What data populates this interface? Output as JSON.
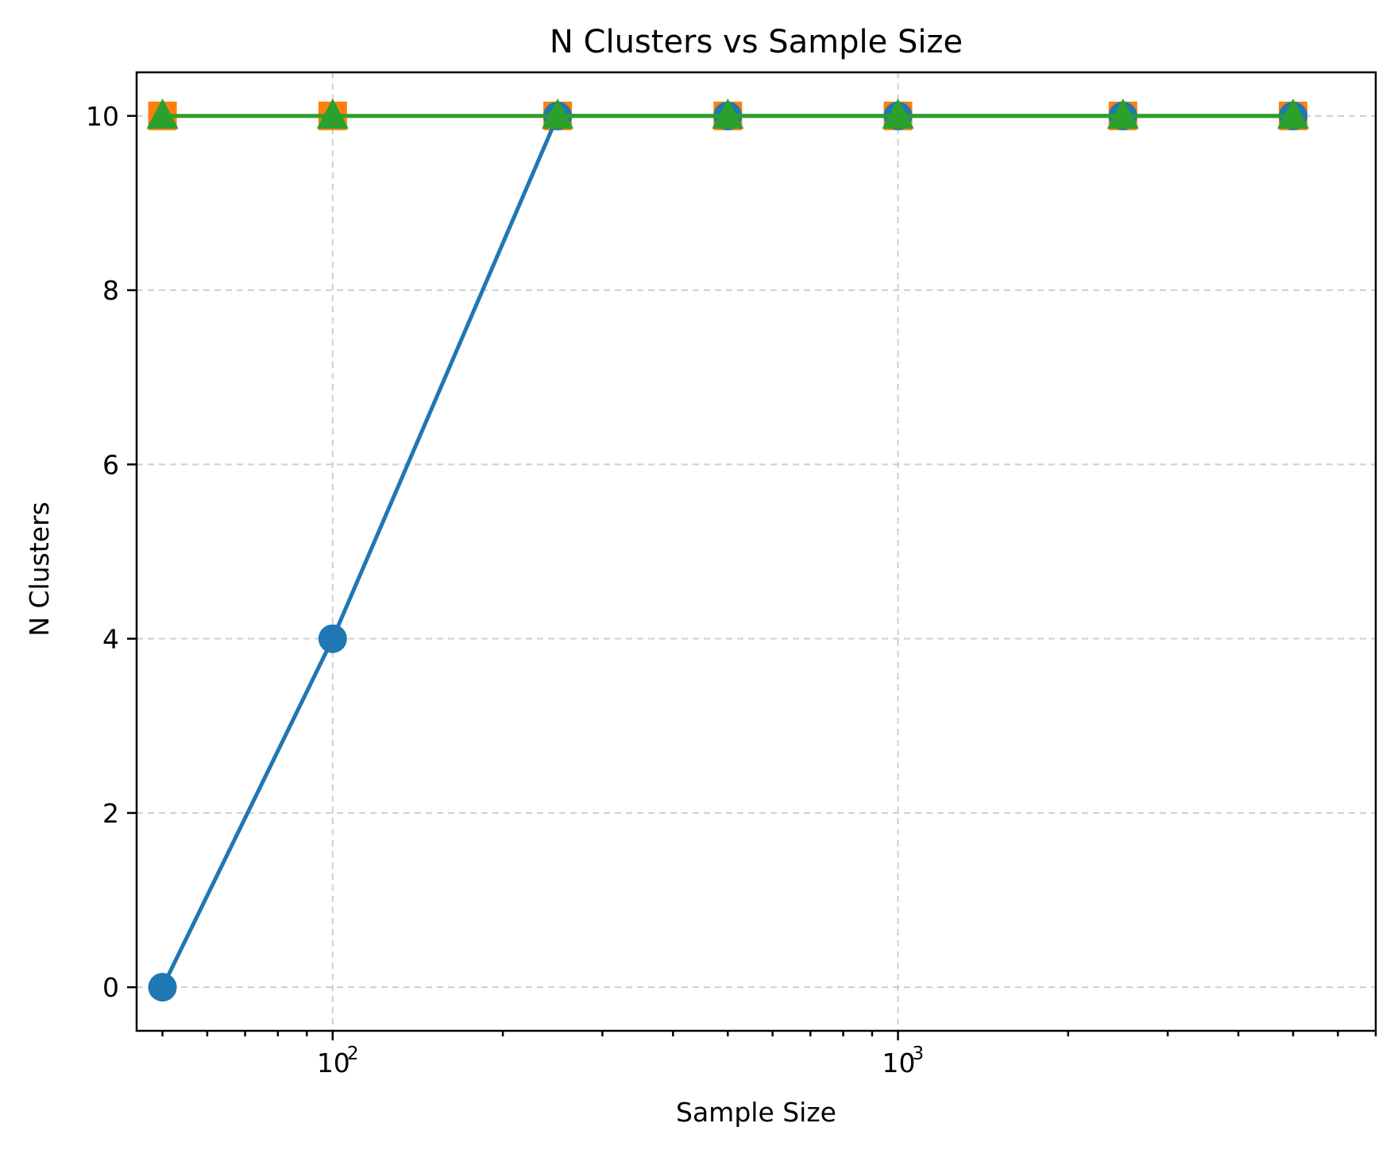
{
  "chart_data": {
    "type": "line",
    "title": "N Clusters vs Sample Size",
    "xlabel": "Sample Size",
    "ylabel": "N Clusters",
    "xscale": "log",
    "xlim": [
      45,
      7000
    ],
    "ylim": [
      -0.5,
      10.5
    ],
    "grid": true,
    "x": [
      50,
      100,
      250,
      500,
      1000,
      2500,
      5000
    ],
    "x_major_ticks": [
      {
        "value": 100,
        "base": "10",
        "exp": "2"
      },
      {
        "value": 1000,
        "base": "10",
        "exp": "3"
      }
    ],
    "x_minor_ticks": [
      50,
      60,
      70,
      80,
      90,
      200,
      300,
      400,
      500,
      600,
      700,
      800,
      900,
      2000,
      3000,
      4000,
      5000,
      6000,
      7000
    ],
    "y_ticks": [
      0,
      2,
      4,
      6,
      8,
      10
    ],
    "series": [
      {
        "color": "#ff7f0e",
        "marker": "square",
        "values": [
          10,
          10,
          10,
          10,
          10,
          10,
          10
        ]
      },
      {
        "color": "#1f77b4",
        "marker": "circle",
        "values": [
          0,
          4,
          10,
          10,
          10,
          10,
          10
        ]
      },
      {
        "color": "#2ca02c",
        "marker": "triangle",
        "values": [
          10,
          10,
          10,
          10,
          10,
          10,
          10
        ]
      }
    ]
  }
}
